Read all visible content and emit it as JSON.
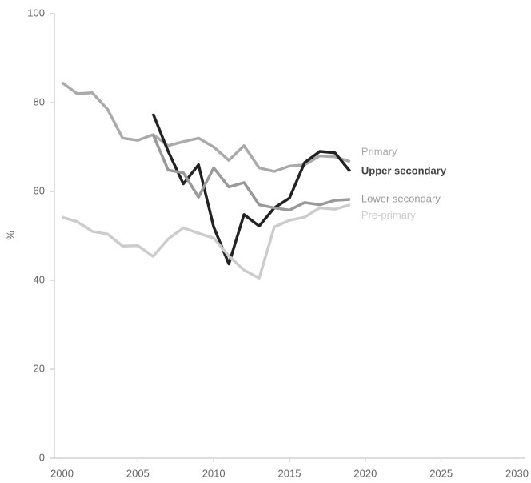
{
  "chart_data": {
    "type": "line",
    "y_label": "%",
    "x": [
      2000,
      2001,
      2002,
      2003,
      2004,
      2005,
      2006,
      2007,
      2008,
      2009,
      2010,
      2011,
      2012,
      2013,
      2014,
      2015,
      2016,
      2017,
      2018,
      2019
    ],
    "series": [
      {
        "name": "Primary",
        "color": "#aaaaaa",
        "values": [
          84.5,
          82,
          82.2,
          78.5,
          72,
          71.5,
          72.8,
          70.3,
          71.2,
          72,
          70,
          67,
          70.3,
          65.3,
          64.5,
          65.7,
          66,
          68,
          67.8,
          66.7
        ]
      },
      {
        "name": "Upper secondary",
        "color": "#222222",
        "values": [
          null,
          null,
          null,
          null,
          null,
          null,
          77.5,
          69,
          61.7,
          66,
          52,
          43.7,
          54.8,
          52.2,
          56.3,
          58.5,
          66.5,
          69,
          68.7,
          64.5
        ]
      },
      {
        "name": "Lower secondary",
        "color": "#999999",
        "values": [
          null,
          null,
          null,
          null,
          null,
          null,
          72.8,
          64.8,
          64.2,
          58.7,
          65.3,
          61,
          62,
          57,
          56.3,
          55.8,
          57.5,
          57,
          58,
          58.2
        ]
      },
      {
        "name": "Pre-primary",
        "color": "#cccccc",
        "values": [
          54.2,
          53.2,
          51,
          50.4,
          47.7,
          47.8,
          45.4,
          49.3,
          51.8,
          50.6,
          49.5,
          45.5,
          42.3,
          40.5,
          52,
          53.5,
          54.2,
          56.3,
          56,
          57
        ]
      }
    ],
    "xlim": [
      1999.5,
      2030.5
    ],
    "xticks": [
      2000,
      2005,
      2010,
      2015,
      2020,
      2025,
      2030
    ],
    "ylim": [
      0,
      100
    ],
    "yticks": [
      0,
      20,
      40,
      60,
      80,
      100
    ]
  }
}
